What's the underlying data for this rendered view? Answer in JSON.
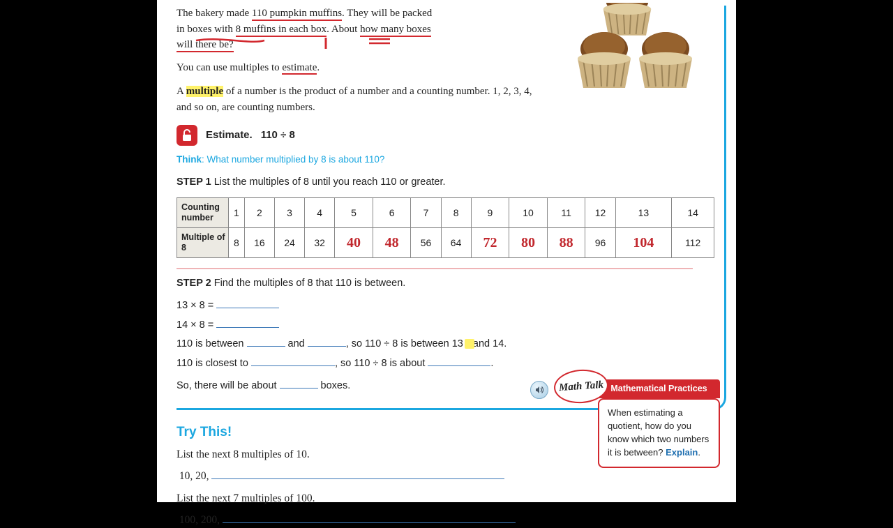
{
  "problem": {
    "line1a": "The bakery made ",
    "u1": "110 pumpkin muffins",
    "line1b": ". They will be packed",
    "line2a": "in boxes with ",
    "u2": "8 muffins in each box",
    "line2b": ". About ",
    "u3": "how many boxes",
    "line3a": "will there be?"
  },
  "hint": "You can use multiples to ",
  "hint_u": "estimate",
  "hint_end": ".",
  "def1": "A ",
  "def_hl": "multiple",
  "def2": " of a number is the product of a number and a counting number. 1, 2, 3, 4, and so on, are counting numbers.",
  "estimateLabel": "Estimate.",
  "estimateExpr": "110 ÷ 8",
  "thinkLabel": "Think",
  "thinkText": ": What number multiplied by 8 is about 110?",
  "step1_label": "STEP 1",
  "step1_text": "  List the multiples of 8 until you reach 110 or greater.",
  "table": {
    "row1Header": "Counting number",
    "row2Header": "Multiple of 8",
    "counts": [
      "1",
      "2",
      "3",
      "4",
      "5",
      "6",
      "7",
      "8",
      "9",
      "10",
      "11",
      "12",
      "13",
      "14"
    ],
    "multiples": [
      "8",
      "16",
      "24",
      "32",
      "40",
      "48",
      "56",
      "64",
      "72",
      "80",
      "88",
      "96",
      "104",
      "112"
    ],
    "handwrittenCols": [
      4,
      5,
      8,
      9,
      10,
      12
    ],
    "handColor": "#c1272d"
  },
  "step2_label": "STEP 2",
  "step2_text": "  Find the multiples of 8 that 110 is between.",
  "w1": "13 × 8 =  ",
  "w2": "14 × 8 =  ",
  "w3a": "110 is between ",
  "w3b": " and ",
  "w3c": ", so 110 ÷ 8 is between 13 ",
  "w3d": "nd 14.",
  "w4a": "110 is closest to ",
  "w4b": ", so 110 ÷ 8 is about ",
  "w4c": ".",
  "w5a": "So, there will be about ",
  "w5b": " boxes.",
  "mathTalk": {
    "bubble": "Math Talk",
    "banner": "Mathematical Practices",
    "body": "When estimating a quotient, how do you know which two numbers it is between? ",
    "explain": "Explain"
  },
  "tryThis": {
    "heading": "Try This!",
    "l1": "List the next 8 multiples of 10.",
    "l1start": "10, 20, ",
    "l2": "List the next 7 multiples of 100.",
    "l2start": "100, 200, "
  },
  "colors": {
    "accent": "#1ba7e0",
    "red": "#d2282e",
    "highlight": "#fff26a",
    "blankLine": "#3b77b7"
  }
}
